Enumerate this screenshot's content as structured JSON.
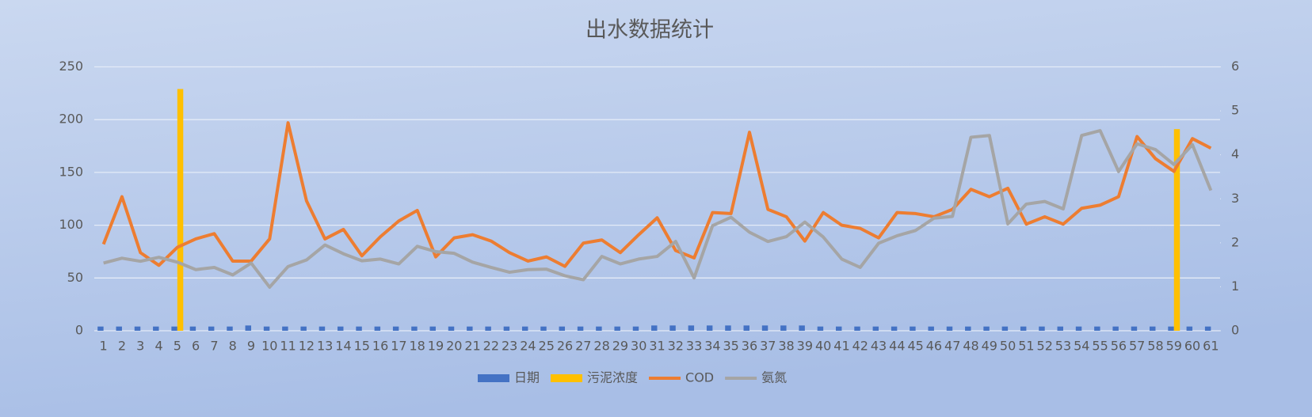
{
  "chart_data": {
    "type": "combo",
    "title": "出水数据统计",
    "categories": [
      "1",
      "2",
      "3",
      "4",
      "5",
      "6",
      "7",
      "8",
      "9",
      "10",
      "11",
      "12",
      "13",
      "14",
      "15",
      "16",
      "17",
      "18",
      "19",
      "20",
      "21",
      "22",
      "23",
      "24",
      "25",
      "26",
      "27",
      "28",
      "29",
      "30",
      "31",
      "32",
      "33",
      "34",
      "35",
      "36",
      "37",
      "38",
      "39",
      "40",
      "41",
      "42",
      "43",
      "44",
      "45",
      "46",
      "47",
      "48",
      "49",
      "50",
      "51",
      "52",
      "53",
      "54",
      "55",
      "56",
      "57",
      "58",
      "59",
      "60",
      "61"
    ],
    "ylim": [
      0,
      250
    ],
    "yticks": [
      0,
      50,
      100,
      150,
      200,
      250
    ],
    "y2lim": [
      0,
      6
    ],
    "y2ticks": [
      0,
      1,
      2,
      3,
      4,
      5,
      6
    ],
    "grid": true,
    "legend": "bottom",
    "series": [
      {
        "name": "日期",
        "type": "bar",
        "color": "#4472c4",
        "values": [
          4,
          4,
          4,
          4,
          4,
          4,
          4,
          4,
          5,
          4,
          4,
          4,
          4,
          4,
          4,
          4,
          4,
          4,
          4,
          4,
          4,
          4,
          4,
          4,
          4,
          4,
          4,
          4,
          4,
          4,
          5,
          5,
          5,
          5,
          5,
          5,
          5,
          5,
          5,
          4,
          4,
          4,
          4,
          4,
          4,
          4,
          4,
          4,
          4,
          4,
          4,
          4,
          4,
          4,
          4,
          4,
          4,
          4,
          4,
          4,
          4
        ]
      },
      {
        "name": "污泥浓度",
        "type": "bar",
        "color": "#ffc000",
        "values": [
          null,
          null,
          null,
          null,
          229,
          null,
          null,
          null,
          null,
          null,
          null,
          null,
          null,
          null,
          null,
          null,
          null,
          null,
          null,
          null,
          null,
          null,
          null,
          null,
          null,
          null,
          null,
          null,
          null,
          null,
          null,
          null,
          null,
          null,
          null,
          null,
          null,
          null,
          null,
          null,
          null,
          null,
          null,
          null,
          null,
          null,
          null,
          null,
          null,
          null,
          null,
          null,
          null,
          null,
          null,
          null,
          null,
          null,
          191,
          null,
          null
        ]
      },
      {
        "name": "COD",
        "type": "line",
        "color": "#ed7d31",
        "values": [
          82,
          127,
          74,
          62,
          79,
          87,
          92,
          66,
          66,
          87,
          197,
          123,
          87,
          96,
          71,
          89,
          104,
          114,
          70,
          88,
          91,
          85,
          74,
          66,
          70,
          61,
          83,
          86,
          74,
          91,
          107,
          76,
          69,
          112,
          111,
          188,
          115,
          108,
          85,
          112,
          100,
          97,
          88,
          112,
          111,
          108,
          115,
          134,
          127,
          135,
          101,
          108,
          101,
          116,
          119,
          127,
          184,
          163,
          151,
          182,
          173
        ]
      },
      {
        "name": "氨氮",
        "type": "line",
        "axis": "y2",
        "color": "#a5a5a5",
        "values": [
          1.54,
          1.65,
          1.58,
          1.67,
          1.56,
          1.39,
          1.44,
          1.27,
          1.54,
          0.99,
          1.46,
          1.61,
          1.95,
          1.75,
          1.59,
          1.63,
          1.52,
          1.92,
          1.8,
          1.76,
          1.56,
          1.44,
          1.33,
          1.39,
          1.4,
          1.25,
          1.16,
          1.69,
          1.52,
          1.63,
          1.69,
          2.03,
          1.2,
          2.39,
          2.58,
          2.24,
          2.03,
          2.14,
          2.47,
          2.13,
          1.63,
          1.44,
          1.99,
          2.16,
          2.28,
          2.56,
          2.6,
          4.4,
          4.44,
          2.43,
          2.88,
          2.94,
          2.77,
          4.44,
          4.55,
          3.62,
          4.25,
          4.12,
          3.78,
          4.23,
          3.19
        ]
      }
    ]
  }
}
